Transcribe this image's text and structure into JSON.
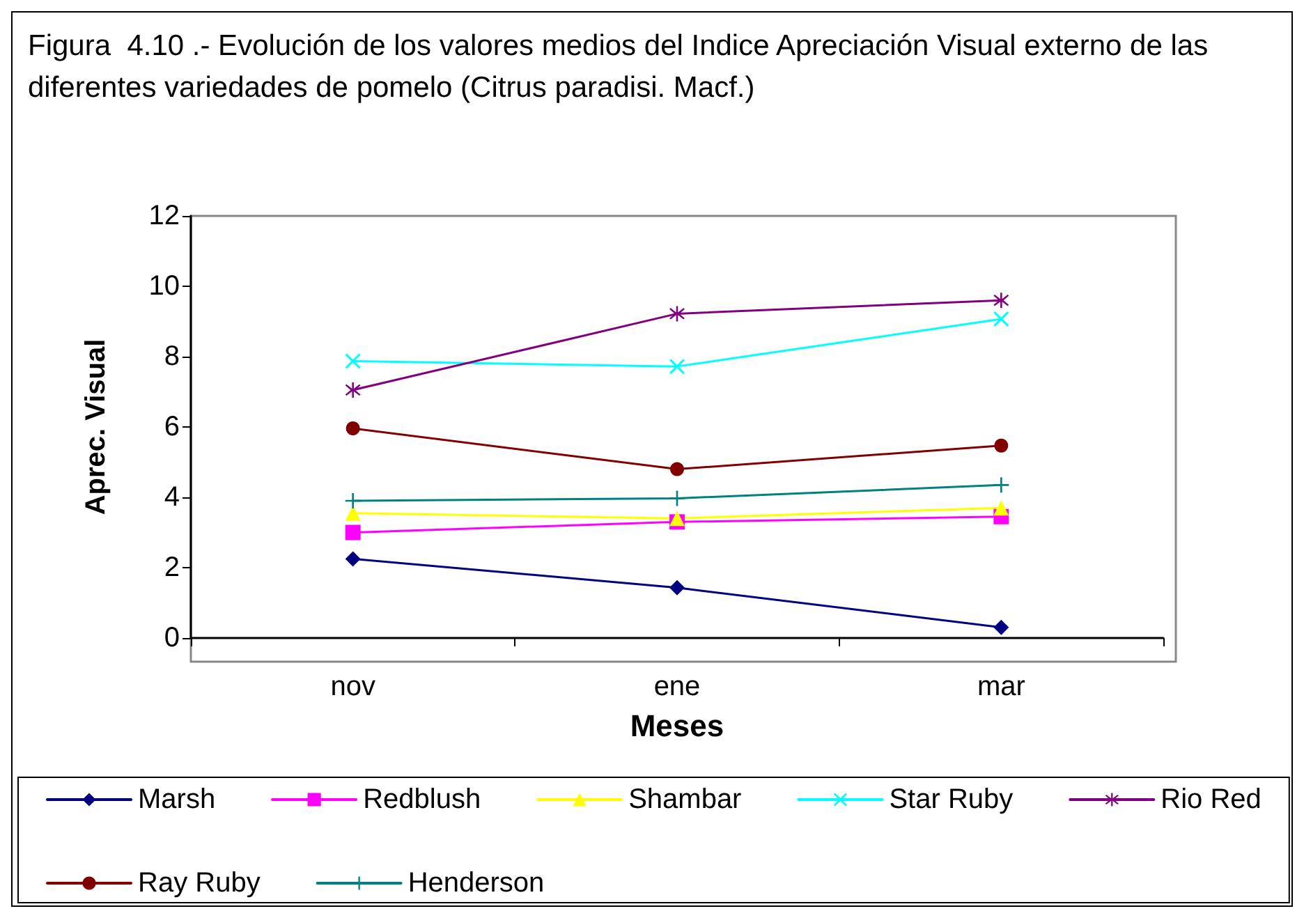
{
  "chart_data": {
    "type": "line",
    "title": "Figura  4.10 .- Evolución de los valores medios del Indice Apreciación Visual externo de las diferentes variedades de pomelo (Citrus paradisi. Macf.)",
    "xlabel": "Meses",
    "ylabel": "Aprec. Visual",
    "categories": [
      "nov",
      "ene",
      "mar"
    ],
    "ylim": [
      0,
      12
    ],
    "yticks": [
      0,
      2,
      4,
      6,
      8,
      10,
      12
    ],
    "grid": false,
    "legend": "bottom",
    "line_style": "solid",
    "series": [
      {
        "name": "Marsh",
        "color": "#000080",
        "marker": "diamond",
        "values": [
          2.25,
          1.43,
          0.3
        ]
      },
      {
        "name": "Redblush",
        "color": "#ff00ff",
        "marker": "square",
        "values": [
          3.0,
          3.3,
          3.45
        ]
      },
      {
        "name": "Shambar",
        "color": "#ffff00",
        "marker": "triangle",
        "values": [
          3.55,
          3.4,
          3.7
        ]
      },
      {
        "name": "Star Ruby",
        "color": "#00ffff",
        "marker": "cross",
        "values": [
          7.87,
          7.72,
          9.07
        ]
      },
      {
        "name": "Rio Red",
        "color": "#800080",
        "marker": "star",
        "values": [
          7.05,
          9.22,
          9.6
        ]
      },
      {
        "name": "Ray Ruby",
        "color": "#800000",
        "marker": "circle",
        "values": [
          5.96,
          4.8,
          5.47
        ]
      },
      {
        "name": "Henderson",
        "color": "#008080",
        "marker": "plus",
        "values": [
          3.9,
          3.97,
          4.35
        ]
      }
    ]
  }
}
